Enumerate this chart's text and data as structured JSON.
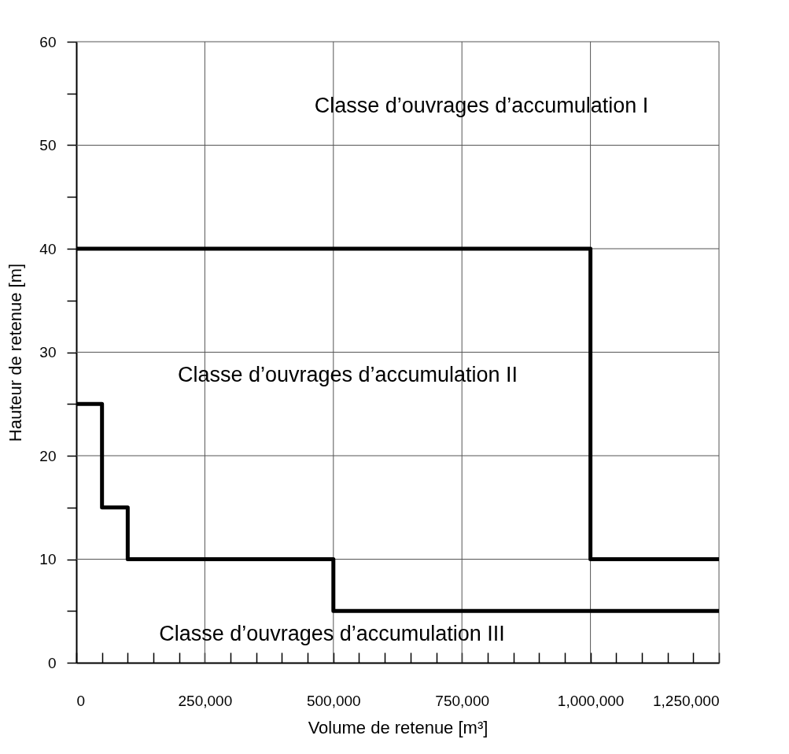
{
  "chart_data": {
    "type": "line",
    "xlabel": "Volume de retenue [m³]",
    "ylabel": "Hauteur de retenue [m]",
    "series": [
      {
        "color": "#000000",
        "x": [
          0,
          1000000,
          1000000,
          1250000
        ],
        "values": [
          40,
          40,
          10,
          10
        ]
      },
      {
        "color": "#000000",
        "x": [
          0,
          50000,
          50000,
          100000,
          100000,
          500000,
          500000,
          1250000
        ],
        "values": [
          25,
          25,
          15,
          15,
          10,
          10,
          5,
          5
        ]
      }
    ],
    "xlim": [
      0,
      1250000
    ],
    "ylim": [
      0,
      60
    ],
    "xticks": [
      {
        "value": 0,
        "label": "0"
      },
      {
        "value": 50000,
        "label": null
      },
      {
        "value": 100000,
        "label": null
      },
      {
        "value": 150000,
        "label": null
      },
      {
        "value": 200000,
        "label": null
      },
      {
        "value": 250000,
        "label": "250,000"
      },
      {
        "value": 300000,
        "label": null
      },
      {
        "value": 350000,
        "label": null
      },
      {
        "value": 400000,
        "label": null
      },
      {
        "value": 450000,
        "label": null
      },
      {
        "value": 500000,
        "label": "500,000"
      },
      {
        "value": 550000,
        "label": null
      },
      {
        "value": 600000,
        "label": null
      },
      {
        "value": 650000,
        "label": null
      },
      {
        "value": 700000,
        "label": null
      },
      {
        "value": 750000,
        "label": "750,000"
      },
      {
        "value": 800000,
        "label": null
      },
      {
        "value": 850000,
        "label": null
      },
      {
        "value": 900000,
        "label": null
      },
      {
        "value": 950000,
        "label": null
      },
      {
        "value": 1000000,
        "label": "1,000,000"
      },
      {
        "value": 1050000,
        "label": null
      },
      {
        "value": 1100000,
        "label": null
      },
      {
        "value": 1150000,
        "label": null
      },
      {
        "value": 1200000,
        "label": null
      },
      {
        "value": 1250000,
        "label": "1,250,000"
      }
    ],
    "yticks": [
      0,
      {
        "value": 5,
        "label": null
      },
      10,
      {
        "value": 15,
        "label": null
      },
      20,
      {
        "value": 25,
        "label": null
      },
      30,
      {
        "value": 35,
        "label": null
      },
      40,
      {
        "value": 45,
        "label": null
      },
      50,
      {
        "value": 55,
        "label": null
      },
      60
    ],
    "grid": true,
    "marker": "none",
    "line_style": "solid",
    "annotations": [
      "Classe d’ouvrages d’accumulation I",
      "Classe d’ouvrages d’accumulation II",
      "Classe d’ouvrages d’accumulation III"
    ]
  }
}
